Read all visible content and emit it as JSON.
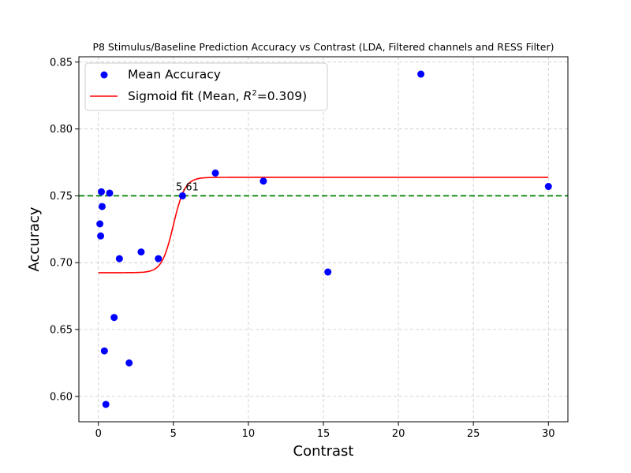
{
  "chart_data": {
    "type": "scatter",
    "title": "P8 Stimulus/Baseline Prediction Accuracy vs Contrast (LDA, Filtered channels and RESS Filter)",
    "xlabel": "Contrast",
    "ylabel": "Accuracy",
    "xlim": [
      -1.3,
      31.3
    ],
    "ylim": [
      0.581,
      0.854
    ],
    "xticks": [
      0,
      5,
      10,
      15,
      20,
      25,
      30
    ],
    "yticks": [
      0.6,
      0.65,
      0.7,
      0.75,
      0.8,
      0.85
    ],
    "xtick_labels": [
      "0",
      "5",
      "10",
      "15",
      "20",
      "25",
      "30"
    ],
    "ytick_labels": [
      "0.60",
      "0.65",
      "0.70",
      "0.75",
      "0.80",
      "0.85"
    ],
    "grid": true,
    "legend_position": "top-left",
    "series": [
      {
        "name": "Mean Accuracy",
        "kind": "scatter",
        "color": "#0000ff",
        "x": [
          0.1,
          0.15,
          0.2,
          0.25,
          0.4,
          0.5,
          0.75,
          1.05,
          1.4,
          2.05,
          2.85,
          4.0,
          5.61,
          7.8,
          11.0,
          15.3,
          21.5,
          30.0
        ],
        "y": [
          0.729,
          0.72,
          0.753,
          0.742,
          0.634,
          0.594,
          0.752,
          0.659,
          0.703,
          0.625,
          0.708,
          0.703,
          0.75,
          0.767,
          0.761,
          0.693,
          0.841,
          0.757
        ]
      },
      {
        "name": "Sigmoid fit (Mean, R²=0.309)",
        "name_prefix": "Sigmoid fit (Mean, ",
        "name_r": "R",
        "name_sup": "2",
        "name_suffix": "=0.309)",
        "kind": "line",
        "color": "#ff0000",
        "curve": {
          "lower": 0.6925,
          "upper": 0.7638,
          "midpoint": 5.0,
          "slope": 2.6,
          "x_range": [
            0,
            30
          ]
        }
      }
    ],
    "reference_line": {
      "y": 0.75,
      "color": "#008000",
      "style": "dashed"
    },
    "annotations": [
      {
        "text": "5.61",
        "x": 5.61,
        "y": 0.75
      }
    ]
  }
}
